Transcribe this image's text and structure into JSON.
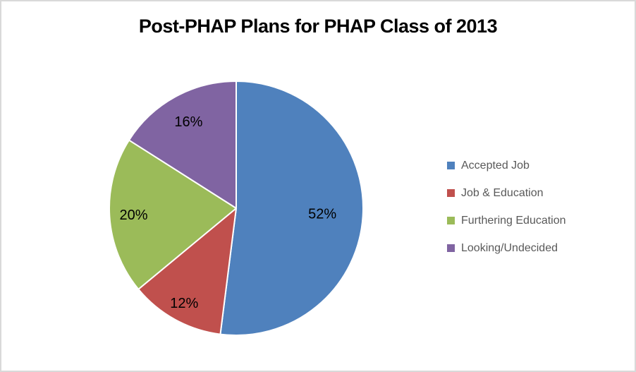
{
  "frame": {
    "background_color": "#ffffff",
    "border_color": "#d9d9d9"
  },
  "chart_data": {
    "type": "pie",
    "title": "Post-PHAP Plans for PHAP Class of 2013",
    "slices": [
      {
        "label": "Accepted Job",
        "value": 52,
        "display": "52%",
        "color": "#4F81BD"
      },
      {
        "label": "Job & Education",
        "value": 12,
        "display": "12%",
        "color": "#C0504D"
      },
      {
        "label": "Furthering Education",
        "value": 20,
        "display": "20%",
        "color": "#9BBB59"
      },
      {
        "label": "Looking/Undecided",
        "value": 16,
        "display": "16%",
        "color": "#8064A2"
      }
    ],
    "start_angle_deg": 0,
    "direction": "clockwise",
    "data_labels": "percent",
    "data_label_color": "#000000",
    "slice_border_color": "#ffffff",
    "legend_position": "right",
    "legend_text_color": "#595959",
    "title_color": "#000000"
  }
}
